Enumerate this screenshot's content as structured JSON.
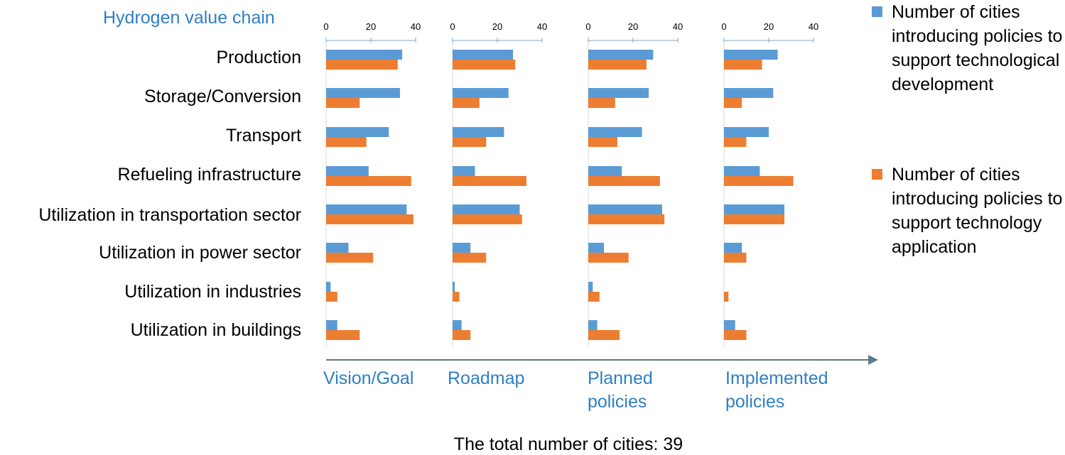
{
  "chart_data": {
    "type": "bar",
    "orientation": "horizontal",
    "header": "Hydrogen value chain",
    "categories": [
      "Production",
      "Storage/Conversion",
      "Transport",
      "Refueling infrastructure",
      "Utilization in transportation sector",
      "Utilization in power sector",
      "Utilization in industries",
      "Utilization in buildings"
    ],
    "legend": [
      {
        "label": "Number of cities introducing policies to support technological development",
        "color": "#5B9BD5"
      },
      {
        "label": "Number of cities introducing policies to support technology application",
        "color": "#ED7D31"
      }
    ],
    "xlim": [
      0,
      40
    ],
    "xticks": [
      "0",
      "20",
      "40"
    ],
    "panels": [
      {
        "name": "Vision/Goal",
        "series": [
          {
            "values": [
              34,
              33,
              28,
              19,
              36,
              10,
              2,
              5
            ]
          },
          {
            "values": [
              32,
              15,
              18,
              38,
              39,
              21,
              5,
              15
            ]
          }
        ]
      },
      {
        "name": "Roadmap",
        "series": [
          {
            "values": [
              27,
              25,
              23,
              10,
              30,
              8,
              1,
              4
            ]
          },
          {
            "values": [
              28,
              12,
              15,
              33,
              31,
              15,
              3,
              8
            ]
          }
        ]
      },
      {
        "name": "Planned policies",
        "series": [
          {
            "values": [
              29,
              27,
              24,
              15,
              33,
              7,
              2,
              4
            ]
          },
          {
            "values": [
              26,
              12,
              13,
              32,
              34,
              18,
              5,
              14
            ]
          }
        ]
      },
      {
        "name": "Implemented policies",
        "series": [
          {
            "values": [
              24,
              22,
              20,
              16,
              27,
              8,
              0,
              5
            ]
          },
          {
            "values": [
              17,
              8,
              10,
              31,
              27,
              10,
              2,
              10
            ]
          }
        ]
      }
    ],
    "footer": "The total number of cities: 39",
    "colors": {
      "header": "#2F7FC2",
      "axis": "#5A7B8C",
      "grid": "#D9D9D9"
    }
  }
}
